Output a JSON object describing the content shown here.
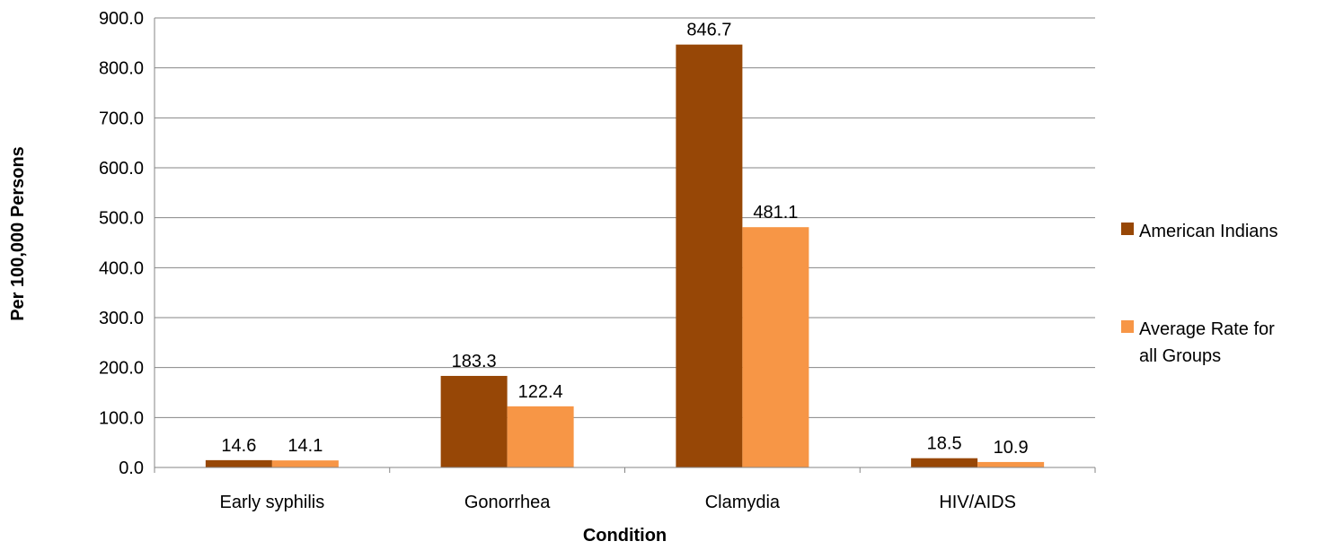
{
  "chart_data": {
    "type": "bar",
    "title": "",
    "xlabel": "Condition",
    "ylabel": "Per 100,000 Persons",
    "categories": [
      "Early syphilis",
      "Gonorrhea",
      "Clamydia",
      "HIV/AIDS"
    ],
    "series": [
      {
        "name": "American Indians",
        "color": "#974706",
        "values": [
          14.6,
          183.3,
          846.7,
          18.5
        ]
      },
      {
        "name": "Average Rate for all Groups",
        "color": "#F79646",
        "values": [
          14.1,
          122.4,
          481.1,
          10.9
        ]
      }
    ],
    "ylim": [
      0,
      900
    ],
    "ytick_step": 100,
    "ytick_labels": [
      "0.0",
      "100.0",
      "200.0",
      "300.0",
      "400.0",
      "500.0",
      "600.0",
      "700.0",
      "800.0",
      "900.0"
    ],
    "grid": true,
    "legend": "right",
    "legend_labels": [
      [
        "American Indians"
      ],
      [
        "Average Rate for",
        "all Groups"
      ]
    ],
    "data_labels": [
      [
        "14.6",
        "183.3",
        "846.7",
        "18.5"
      ],
      [
        "14.1",
        "122.4",
        "481.1",
        "10.9"
      ]
    ]
  }
}
